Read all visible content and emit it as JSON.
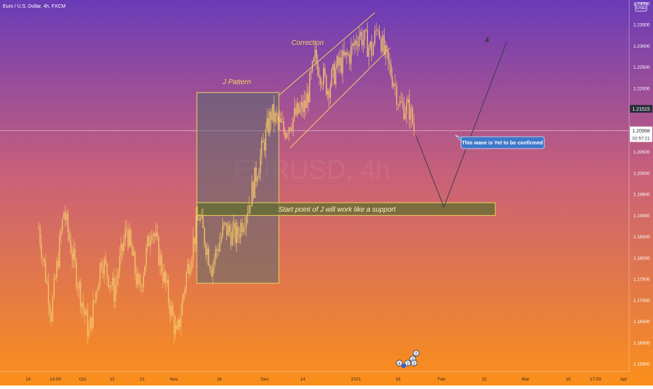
{
  "header": {
    "symbol_title": "Euro / U.S. Dollar, 4h, FXCM"
  },
  "watermark": "EURUSD, 4h",
  "currency_badge": "USD",
  "colors": {
    "bg_top": "#6a3bb8",
    "bg_mid": "#c8607a",
    "bg_bottom": "#fb8f1a",
    "candle": "#f5c56a",
    "pattern_line": "#f2d45c",
    "pattern_box": "#5a6a6e",
    "support_band": "#5f6e30",
    "callout_bg": "#3f78c9",
    "current_price_bg": "#2a2e39"
  },
  "annotations": {
    "j_pattern": "J Pattern",
    "correction": "Correction",
    "support": "Start point of J will work like a support",
    "callout": "This wave is Yet to be confirmed"
  },
  "price_tags": {
    "upper": "1.21515",
    "current": "1.20998",
    "countdown": "02:57:21"
  },
  "event_badges": [
    "2",
    "3",
    "2",
    "3",
    "4"
  ],
  "chart_data": {
    "type": "candlestick",
    "title": "Euro / U.S. Dollar, 4h, FXCM",
    "xlabel": "",
    "ylabel": "",
    "ylim": [
      1.153,
      1.242
    ],
    "y_ticks": [
      "1.24000",
      "1.23500",
      "1.23000",
      "1.22500",
      "1.22000",
      "1.21515",
      "1.20998",
      "1.20500",
      "1.20000",
      "1.19500",
      "1.19000",
      "1.18500",
      "1.18000",
      "1.17500",
      "1.17000",
      "1.16500",
      "1.16000",
      "1.15500"
    ],
    "x_ticks": [
      "14",
      "14:00",
      "Oct",
      "12",
      "21",
      "Nov",
      "16",
      "Dec",
      "14",
      "2021",
      "18",
      "Feb",
      "15",
      "Mar",
      "15",
      "17:00",
      "Apr"
    ],
    "grid": false,
    "price_path": [
      [
        "Sep 20",
        1.187
      ],
      [
        "Sep 24",
        1.167
      ],
      [
        "Sep 28",
        1.191
      ],
      [
        "Oct 02",
        1.176
      ],
      [
        "Oct 06",
        1.162
      ],
      [
        "Oct 10",
        1.18
      ],
      [
        "Oct 14",
        1.172
      ],
      [
        "Oct 18",
        1.187
      ],
      [
        "Oct 22",
        1.172
      ],
      [
        "Oct 26",
        1.188
      ],
      [
        "Oct 30",
        1.175
      ],
      [
        "Nov 03",
        1.161
      ],
      [
        "Nov 06",
        1.176
      ],
      [
        "Nov 10",
        1.19
      ],
      [
        "Nov 14",
        1.178
      ],
      [
        "Nov 18",
        1.187
      ],
      [
        "Nov 22",
        1.185
      ],
      [
        "Nov 26",
        1.193
      ],
      [
        "Nov 30",
        1.205
      ],
      [
        "Dec 03",
        1.214
      ],
      [
        "Dec 07",
        1.21
      ],
      [
        "Dec 10",
        1.213
      ],
      [
        "Dec 14",
        1.216
      ],
      [
        "Dec 17",
        1.227
      ],
      [
        "Dec 21",
        1.22
      ],
      [
        "Dec 24",
        1.225
      ],
      [
        "Dec 28",
        1.228
      ],
      [
        "Dec 31",
        1.233
      ],
      [
        "Jan 04",
        1.229
      ],
      [
        "Jan 06",
        1.235
      ],
      [
        "Jan 08",
        1.228
      ],
      [
        "Jan 11",
        1.222
      ],
      [
        "Jan 13",
        1.216
      ],
      [
        "Jan 16",
        1.215
      ],
      [
        "Jan 18",
        1.209
      ]
    ],
    "projection_path": [
      [
        "Jan 18",
        1.209
      ],
      [
        "Jan 27",
        1.192
      ],
      [
        "Feb 16",
        1.231
      ]
    ],
    "support_zone": [
      1.19,
      1.193
    ],
    "j_pattern_range": [
      1.174,
      1.219
    ],
    "correction_channel": {
      "upper": [
        [
          1.207,
          1.237
        ]
      ],
      "lower": [
        [
          1.205,
          1.229
        ]
      ]
    },
    "current_price": 1.20998,
    "marked_price": 1.21515
  }
}
